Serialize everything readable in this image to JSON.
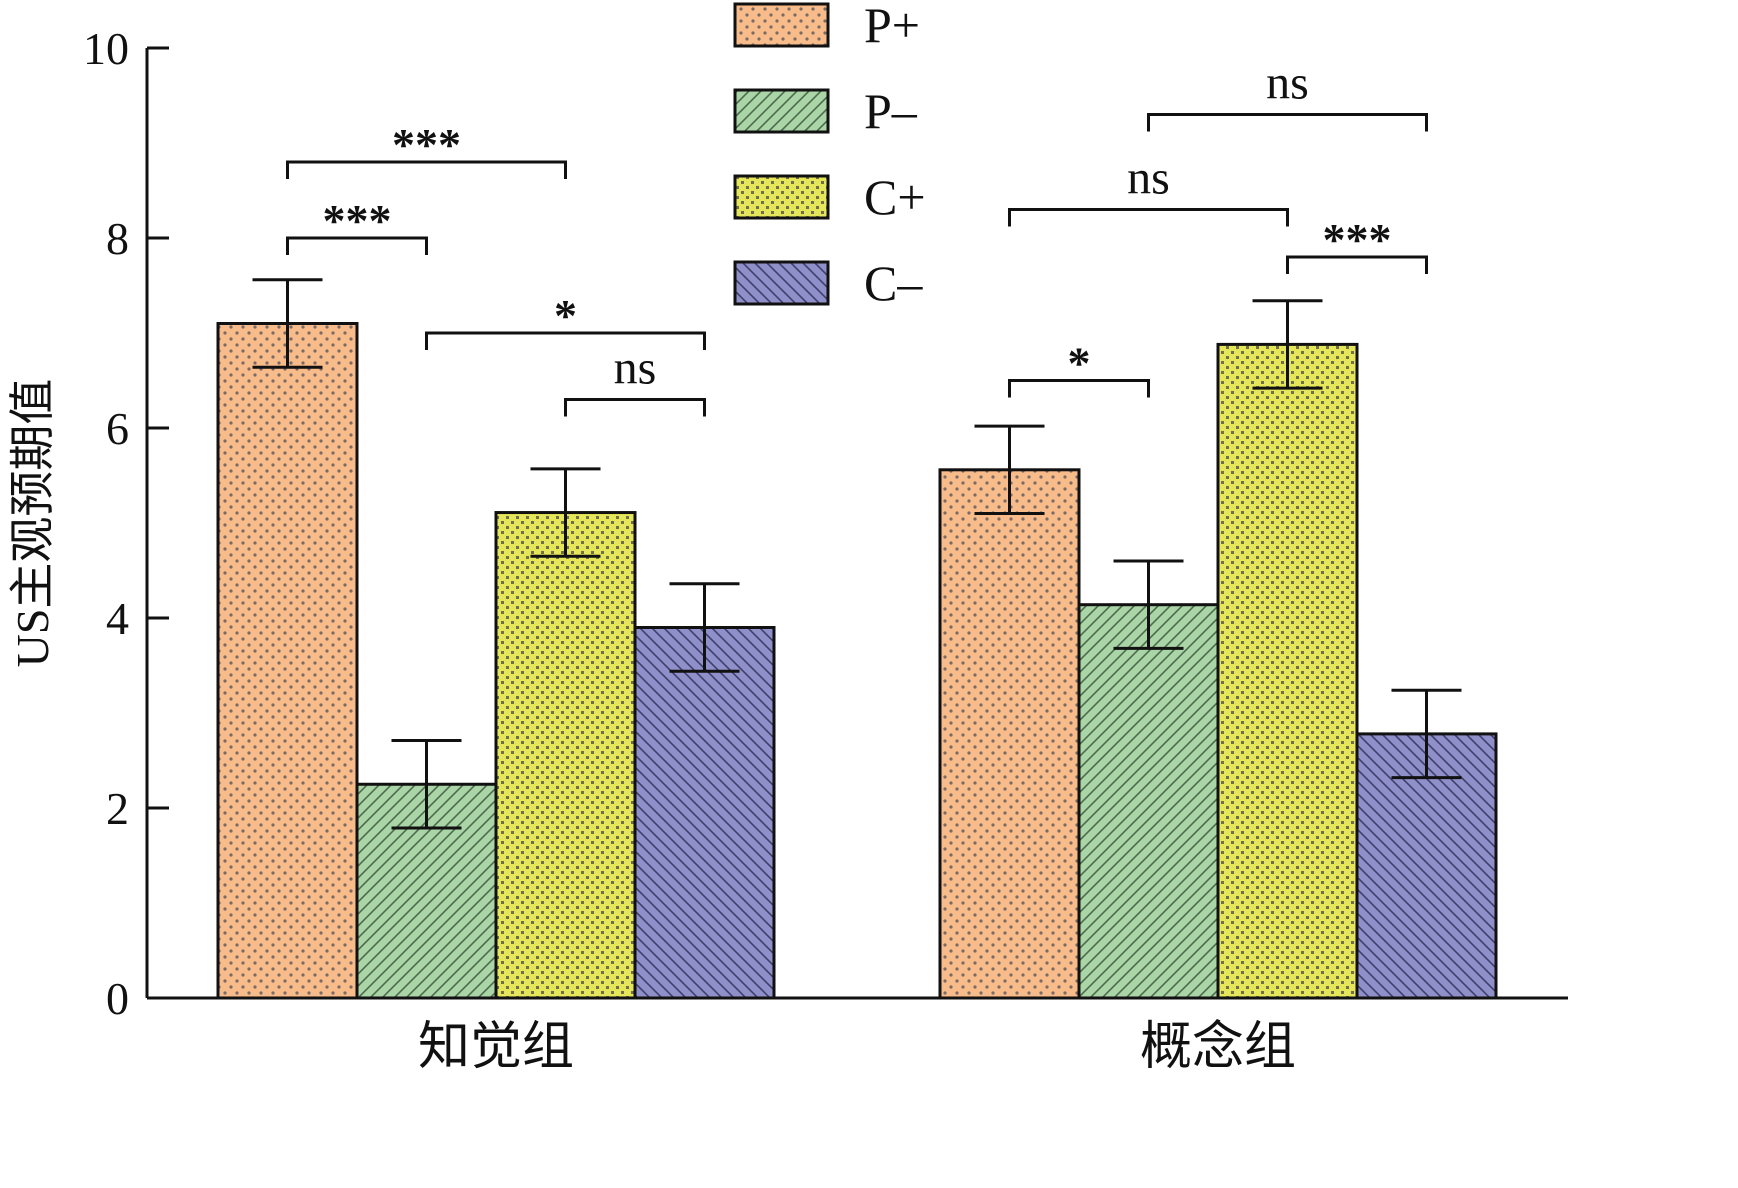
{
  "chart_data": {
    "type": "bar",
    "ylabel": "US主观预期值",
    "xlabel": "",
    "ylim": [
      0,
      10
    ],
    "yticks": [
      0,
      2,
      4,
      6,
      8,
      10
    ],
    "categories": [
      "知觉组",
      "概念组"
    ],
    "series": [
      {
        "name": "P+",
        "values": [
          7.1,
          5.56
        ],
        "errors": [
          0.46,
          0.46
        ],
        "color": "#f8bb8a",
        "pattern": "dots"
      },
      {
        "name": "P–",
        "values": [
          2.25,
          4.14
        ],
        "errors": [
          0.46,
          0.46
        ],
        "color": "#a9d5a7",
        "pattern": "hatch-right"
      },
      {
        "name": "C+",
        "values": [
          5.11,
          6.88
        ],
        "errors": [
          0.46,
          0.46
        ],
        "color": "#e6e65a",
        "pattern": "checks"
      },
      {
        "name": "C–",
        "values": [
          3.9,
          2.78
        ],
        "errors": [
          0.46,
          0.46
        ],
        "color": "#8f8fc9",
        "pattern": "hatch-left"
      }
    ],
    "legend": {
      "position": "top-center"
    },
    "grid": false,
    "annotations": [
      {
        "category": 0,
        "from": 0,
        "to": 1,
        "y": 8.0,
        "label": "***"
      },
      {
        "category": 0,
        "from": 0,
        "to": 2,
        "y": 8.8,
        "label": "***"
      },
      {
        "category": 0,
        "from": 1,
        "to": 3,
        "y": 7.0,
        "label": "*"
      },
      {
        "category": 0,
        "from": 2,
        "to": 3,
        "y": 6.3,
        "label": "ns"
      },
      {
        "category": 1,
        "from": 0,
        "to": 1,
        "y": 6.5,
        "label": "*"
      },
      {
        "category": 1,
        "from": 0,
        "to": 2,
        "y": 8.3,
        "label": "ns"
      },
      {
        "category": 1,
        "from": 1,
        "to": 3,
        "y": 9.3,
        "label": "ns"
      },
      {
        "category": 1,
        "from": 2,
        "to": 3,
        "y": 7.8,
        "label": "***"
      }
    ]
  }
}
